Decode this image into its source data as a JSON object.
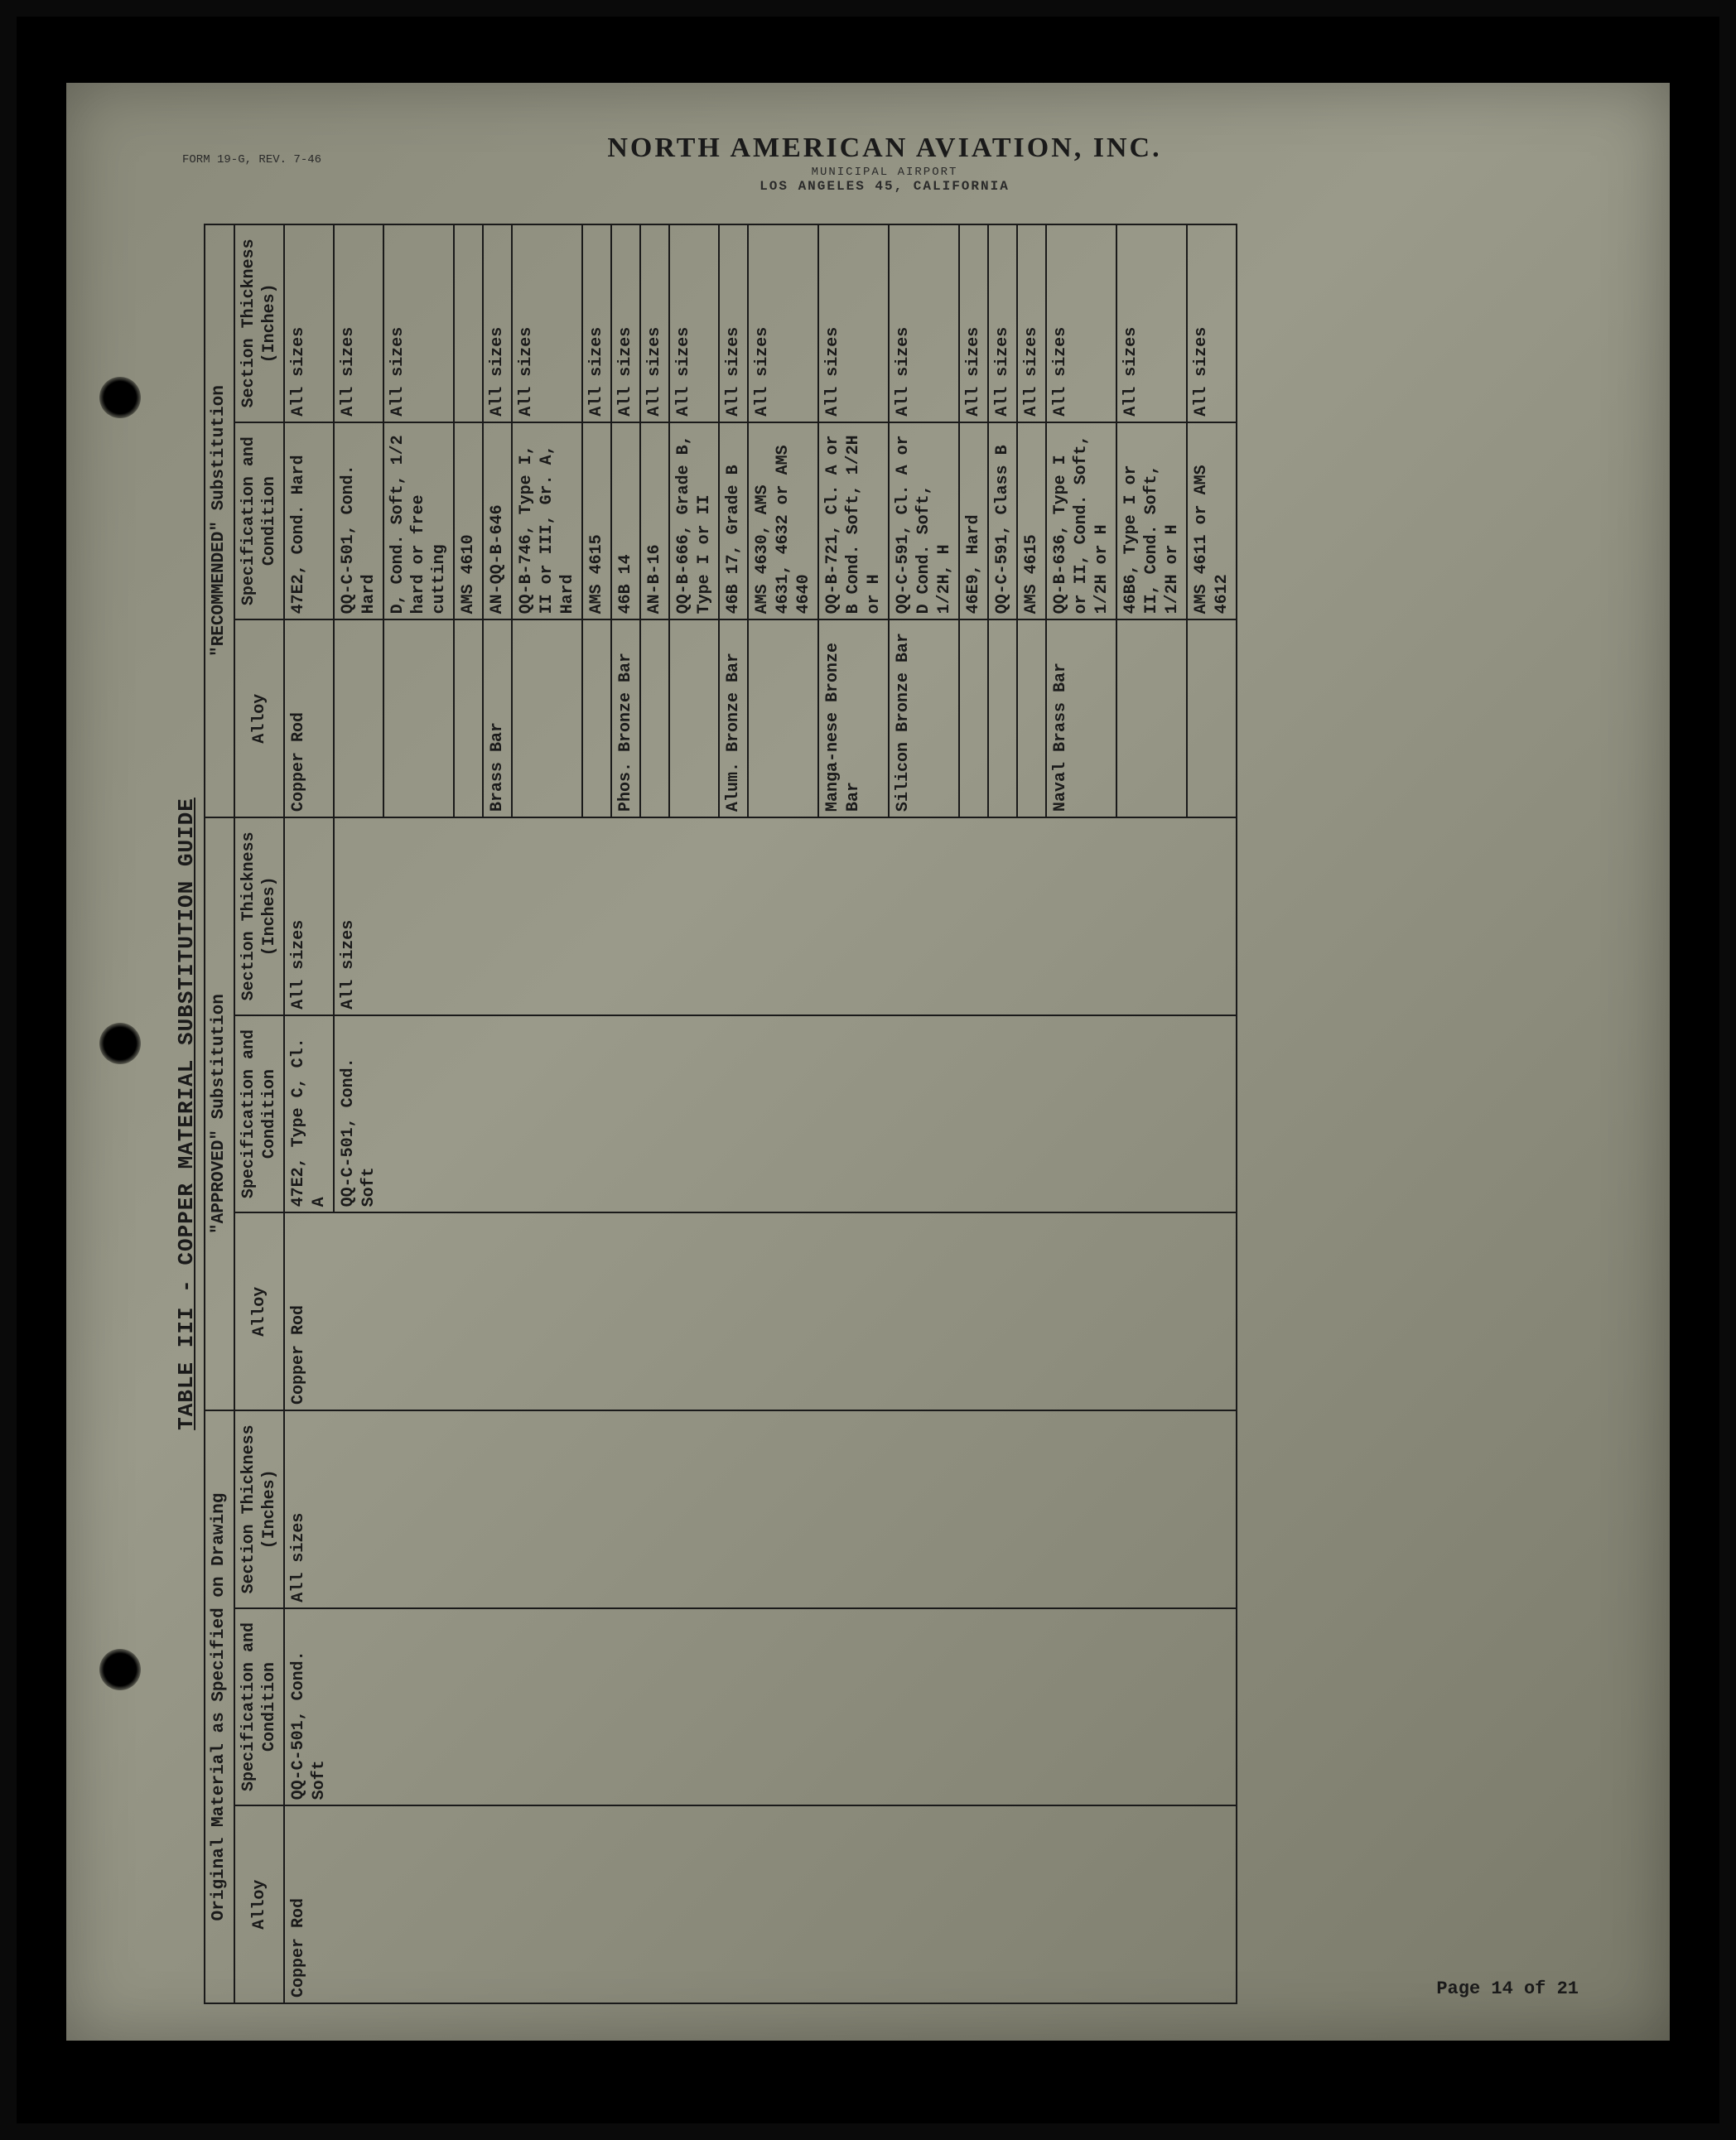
{
  "letterhead": {
    "company": "NORTH AMERICAN AVIATION, INC.",
    "line1": "MUNICIPAL AIRPORT",
    "line2": "LOS ANGELES 45, CALIFORNIA",
    "form": "FORM 19-G, REV. 7-46"
  },
  "title": "TABLE III - COPPER MATERIAL SUBSTITUTION GUIDE",
  "group_headers": {
    "g1": "Original Material as Specified on Drawing",
    "g2": "\"APPROVED\" Substitution",
    "g3": "\"RECOMMENDED\" Substitution"
  },
  "col_headers": {
    "alloy": "Alloy",
    "spec": "Specification and Condition",
    "thick": "Section Thickness (Inches)"
  },
  "original": {
    "alloy": "Copper Rod",
    "spec": "QQ-C-501, Cond. Soft",
    "thick": "All sizes"
  },
  "approved": {
    "alloy": "Copper Rod",
    "spec1": "47E2, Type C, Cl. A",
    "spec2": "QQ-C-501, Cond. Soft",
    "thick1": "All sizes",
    "thick2": "All sizes"
  },
  "recommended": [
    {
      "alloy": "Copper Rod",
      "spec": "47E2, Cond. Hard",
      "thick": "All sizes"
    },
    {
      "alloy": "",
      "spec": "QQ-C-501, Cond. Hard",
      "thick": "All sizes"
    },
    {
      "alloy": "",
      "spec": "D, Cond. Soft, 1/2 hard or free cutting",
      "thick": "All sizes"
    },
    {
      "alloy": "",
      "spec": "AMS 4610",
      "thick": ""
    },
    {
      "alloy": "Brass Bar",
      "spec": "AN-QQ-B-646",
      "thick": "All sizes"
    },
    {
      "alloy": "",
      "spec": "QQ-B-746, Type I, II or III, Gr. A, Hard",
      "thick": "All sizes"
    },
    {
      "alloy": "",
      "spec": "AMS 4615",
      "thick": "All sizes"
    },
    {
      "alloy": "Phos. Bronze Bar",
      "spec": "46B 14",
      "thick": "All sizes"
    },
    {
      "alloy": "",
      "spec": "AN-B-16",
      "thick": "All sizes"
    },
    {
      "alloy": "",
      "spec": "QQ-B-666, Grade B, Type I or II",
      "thick": "All sizes"
    },
    {
      "alloy": "Alum. Bronze Bar",
      "spec": "46B 17, Grade B",
      "thick": "All sizes"
    },
    {
      "alloy": "",
      "spec": "AMS 4630, AMS 4631, 4632 or AMS 4640",
      "thick": "All sizes"
    },
    {
      "alloy": "Manga-nese Bronze Bar",
      "spec": "QQ-B-721, Cl. A or B Cond. Soft, 1/2H or H",
      "thick": "All sizes"
    },
    {
      "alloy": "Silicon Bronze Bar",
      "spec": "QQ-C-591, Cl. A or D Cond. Soft, 1/2H, H",
      "thick": "All sizes"
    },
    {
      "alloy": "",
      "spec": "46E9, Hard",
      "thick": "All sizes"
    },
    {
      "alloy": "",
      "spec": "QQ-C-591, Class B",
      "thick": "All sizes"
    },
    {
      "alloy": "",
      "spec": "AMS 4615",
      "thick": "All sizes"
    },
    {
      "alloy": "Naval Brass Bar",
      "spec": "QQ-B-636, Type I or II, Cond. Soft, 1/2H or H",
      "thick": "All sizes"
    },
    {
      "alloy": "",
      "spec": "46B6, Type I or II, Cond. Soft, 1/2H or H",
      "thick": "All sizes"
    },
    {
      "alloy": "",
      "spec": "AMS 4611 or AMS 4612",
      "thick": "All sizes"
    }
  ],
  "page_num": "Page 14 of 21",
  "colors": {
    "paper": "#8f8d7c",
    "ink": "#1a1a1a",
    "frame": "#000000"
  }
}
